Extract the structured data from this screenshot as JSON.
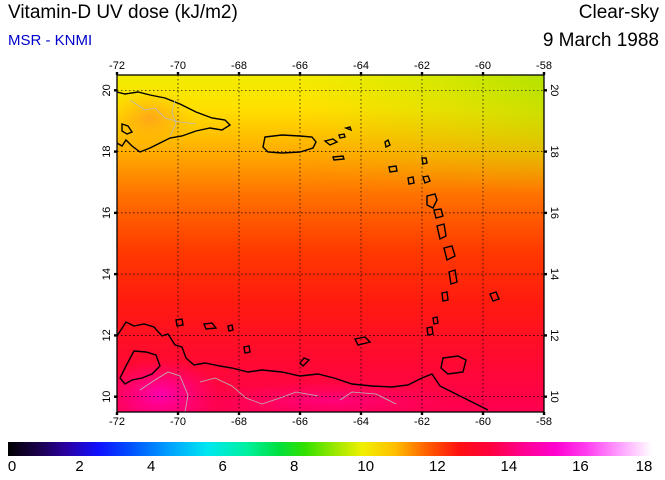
{
  "header": {
    "title": "Vitamin-D UV dose (kJ/m2)",
    "subtitle": "MSR - KNMI",
    "sky_condition": "Clear-sky",
    "date": "9 March 1988"
  },
  "map": {
    "lon_range": [
      -72,
      -58
    ],
    "lat_range": [
      9.5,
      20.5
    ],
    "lon_ticks": [
      -72,
      -70,
      -68,
      -66,
      -64,
      -62,
      -60,
      -58
    ],
    "lat_ticks": [
      10,
      12,
      14,
      16,
      18,
      20
    ],
    "grid": "dotted"
  },
  "colorbar": {
    "min": 0,
    "max": 18,
    "labels": [
      "0",
      "2",
      "4",
      "6",
      "8",
      "10",
      "12",
      "14",
      "16",
      "18"
    ]
  }
}
